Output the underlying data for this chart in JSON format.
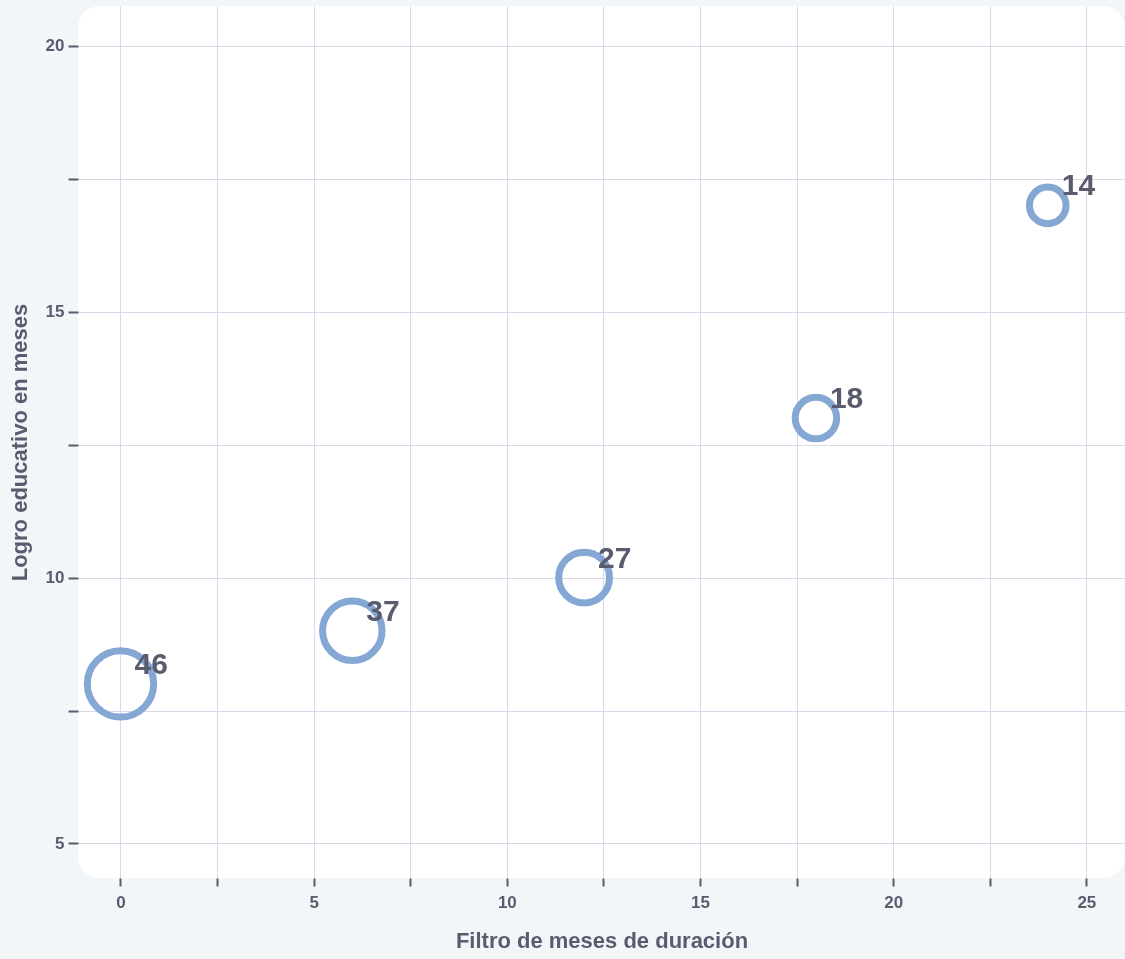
{
  "chart_data": {
    "type": "bubble",
    "xlabel": "Filtro de meses de duración",
    "ylabel": "Logro educativo en meses",
    "x": [
      0,
      6,
      12,
      18,
      24
    ],
    "values": [
      8,
      9,
      10,
      13,
      17
    ],
    "sizes": [
      46,
      37,
      27,
      18,
      14
    ],
    "value_labels": [
      "46",
      "37",
      "27",
      "18",
      "14"
    ],
    "color": "#84a7d4",
    "marker": "circle",
    "xlim": [
      -1.1,
      26
    ],
    "xticks": [
      0,
      {
        "value": 2.5,
        "label": null
      },
      5,
      {
        "value": 7.5,
        "label": null
      },
      10,
      {
        "value": 12.5,
        "label": null
      },
      15,
      {
        "value": 17.5,
        "label": null
      },
      20,
      {
        "value": 22.5,
        "label": null
      },
      25
    ],
    "ylim": [
      4.35,
      20.75
    ],
    "yticks": [
      5,
      {
        "value": 7.5,
        "label": null
      },
      10,
      {
        "value": 12.5,
        "label": null
      },
      15,
      {
        "value": 17.5,
        "label": null
      },
      20
    ],
    "grid": true
  }
}
